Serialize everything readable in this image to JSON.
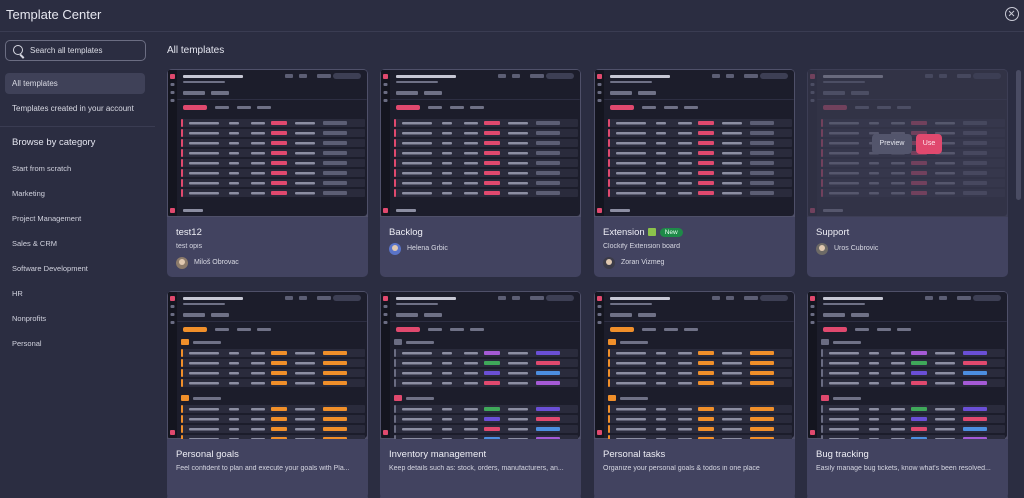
{
  "app": {
    "title": "Template Center"
  },
  "sidebar": {
    "search_placeholder": "Search all templates",
    "nav": [
      {
        "label": "All templates",
        "active": true
      },
      {
        "label": "Templates created in your account",
        "active": false
      }
    ],
    "category_heading": "Browse by category",
    "categories": [
      "Start from scratch",
      "Marketing",
      "Project Management",
      "Sales & CRM",
      "Software Development",
      "HR",
      "Nonprofits",
      "Personal"
    ]
  },
  "main": {
    "section_title": "All templates",
    "cards": [
      {
        "title": "test12",
        "description": "test opis",
        "author": "Miloš Obrovac"
      },
      {
        "title": "Backlog",
        "description": "",
        "author": "Helena Grbic"
      },
      {
        "title": "Extension",
        "badge": "New",
        "description": "Clockify Extension board",
        "author": "Zoran Vizmeg"
      },
      {
        "title": "Support",
        "description": "",
        "author": "Uros Cubrovic",
        "hover_actions": {
          "preview": "Preview",
          "use": "Use"
        }
      },
      {
        "title": "Personal goals",
        "description": "Feel confident to plan and execute your goals with Pla...",
        "author": ""
      },
      {
        "title": "Inventory management",
        "description": "Keep details such as: stock, orders, manufacturers, an...",
        "author": ""
      },
      {
        "title": "Personal tasks",
        "description": "Organize your personal goals & todos in one place",
        "author": ""
      },
      {
        "title": "Bug tracking",
        "description": "Easily manage bug tickets, know what's been resolved...",
        "author": ""
      }
    ]
  },
  "colors": {
    "background": "#2b2d41",
    "card": "#424360",
    "accent_pink": "#e0496e",
    "new_badge": "#1e8a48"
  },
  "icons": [
    "close-icon",
    "search-icon",
    "puzzle-icon",
    "avatar"
  ]
}
